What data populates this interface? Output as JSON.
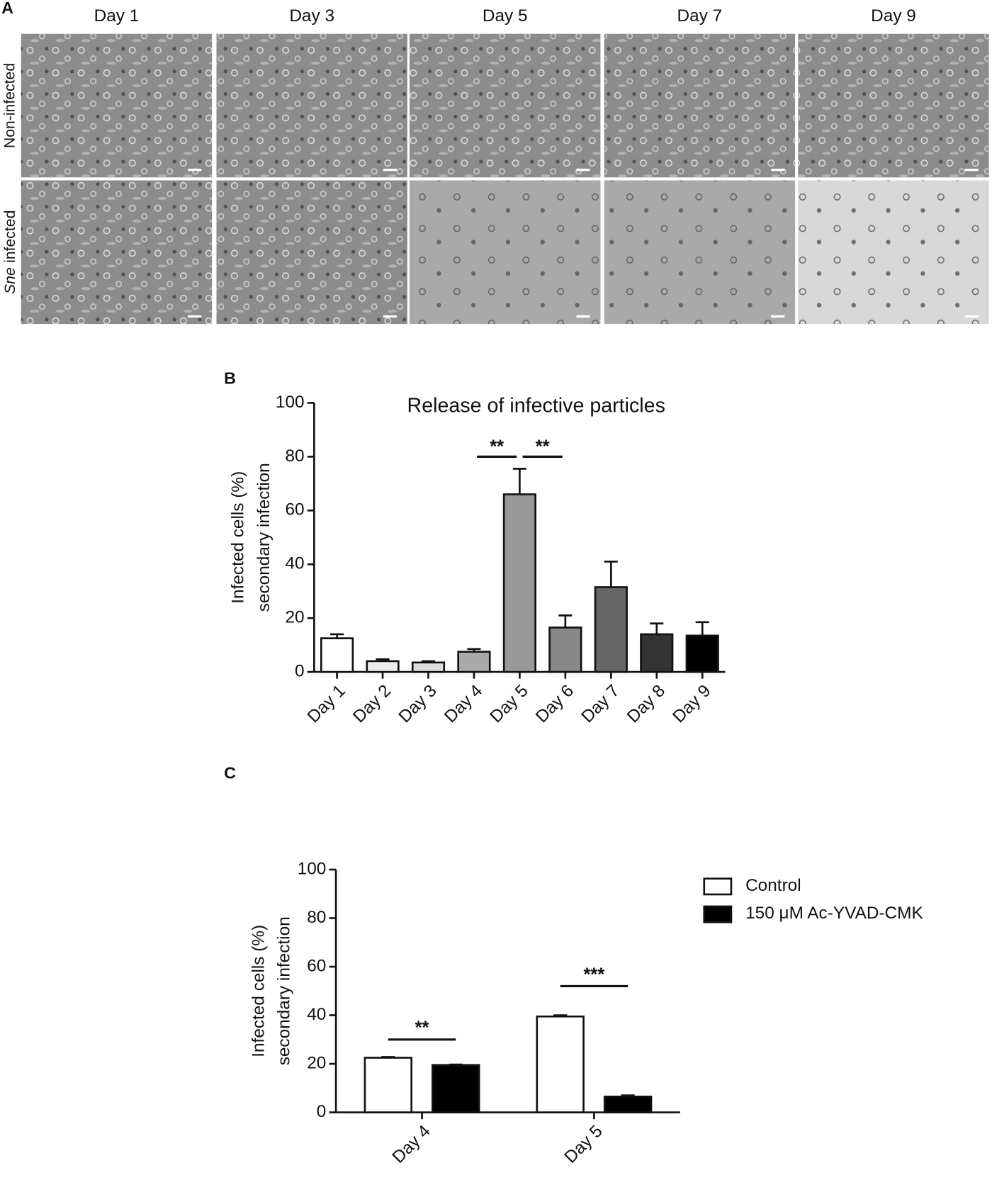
{
  "panel_a": {
    "label": "A",
    "columns": [
      "Day 1",
      "Day 3",
      "Day 5",
      "Day 7",
      "Day 9"
    ],
    "rows": [
      {
        "text": "Non-infected"
      },
      {
        "italic": "Sne",
        "text": "infected"
      }
    ]
  },
  "chart_data": [
    {
      "type": "bar",
      "panel_label": "B",
      "title": "Release of infective particles",
      "ylabel": [
        "Infected cells (%)",
        "secondary infection"
      ],
      "categories": [
        "Day 1",
        "Day 2",
        "Day 3",
        "Day 4",
        "Day 5",
        "Day 6",
        "Day 7",
        "Day 8",
        "Day 9"
      ],
      "values": [
        12.5,
        4,
        3.5,
        7.5,
        66,
        16.5,
        31.5,
        14,
        13.5
      ],
      "errors": [
        1.5,
        0.7,
        0.5,
        1,
        9.5,
        4.5,
        9.5,
        4,
        5
      ],
      "colors": [
        "#ffffff",
        "#eeeeee",
        "#dddddd",
        "#aaaaaa",
        "#999999",
        "#888888",
        "#666666",
        "#333333",
        "#000000"
      ],
      "ylim": [
        0,
        100
      ],
      "yticks": [
        0,
        20,
        40,
        60,
        80,
        100
      ],
      "grid": false,
      "annotations": [
        {
          "text": "**",
          "from": 3,
          "to": 4,
          "y": 80
        },
        {
          "text": "**",
          "from": 4,
          "to": 5,
          "y": 80
        }
      ]
    },
    {
      "type": "grouped_bar",
      "panel_label": "C",
      "ylabel": [
        "Infected cells (%)",
        "secondary infection"
      ],
      "categories": [
        "Day 4",
        "Day 5"
      ],
      "series": [
        {
          "name": "Control",
          "color": "#ffffff",
          "values": [
            22.5,
            39.5
          ],
          "errors": [
            0.3,
            0.5
          ]
        },
        {
          "name": "150 μM Ac-YVAD-CMK",
          "color": "#000000",
          "values": [
            19.5,
            6.5
          ],
          "errors": [
            0.2,
            0.5
          ]
        }
      ],
      "ylim": [
        0,
        100
      ],
      "yticks": [
        0,
        20,
        40,
        60,
        80,
        100
      ],
      "grid": false,
      "legend": "upper right",
      "annotations": [
        {
          "text": "**",
          "category": 0,
          "y": 30
        },
        {
          "text": "***",
          "category": 1,
          "y": 52
        }
      ]
    }
  ]
}
